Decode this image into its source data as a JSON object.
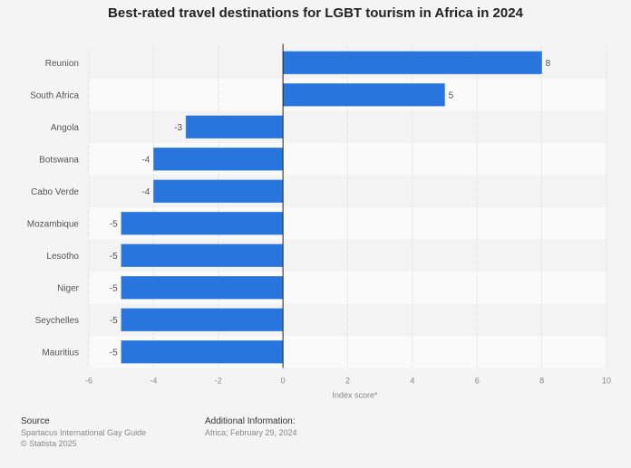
{
  "chart_data": {
    "type": "bar",
    "orientation": "horizontal",
    "title": "Best-rated travel destinations for LGBT tourism in Africa in 2024",
    "categories": [
      "Reunion",
      "South Africa",
      "Angola",
      "Botswana",
      "Cabo Verde",
      "Mozambique",
      "Lesotho",
      "Niger",
      "Seychelles",
      "Mauritius"
    ],
    "values": [
      8,
      5,
      -3,
      -4,
      -4,
      -5,
      -5,
      -5,
      -5,
      -5
    ],
    "xlabel": "Index score*",
    "xlim": [
      -6,
      10
    ],
    "xticks": [
      -6,
      -4,
      -2,
      0,
      2,
      4,
      6,
      8,
      10
    ],
    "grid": true,
    "bar_color": "#2876dd"
  },
  "footer": {
    "source_heading": "Source",
    "source": "Spartacus International Gay Guide",
    "copyright": "© Statista 2025",
    "info_heading": "Additional Information:",
    "info": "Africa; February 29, 2024"
  }
}
